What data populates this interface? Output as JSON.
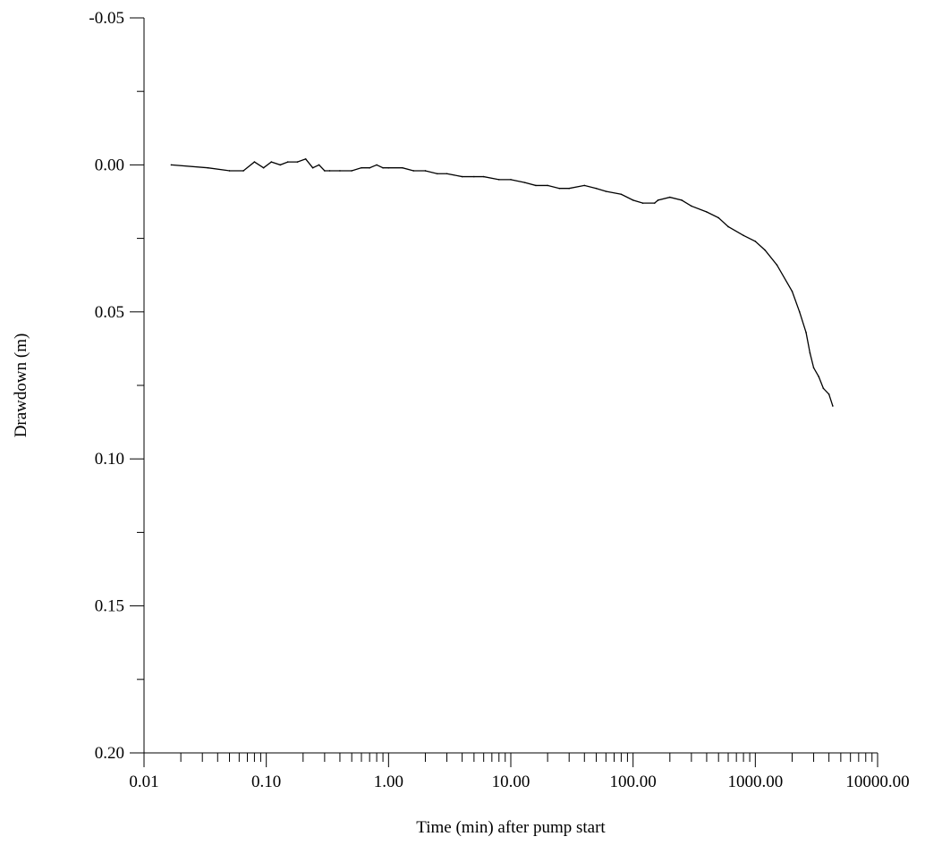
{
  "chart_data": {
    "type": "line",
    "title": "",
    "xlabel": "Time (min) after pump start",
    "ylabel": "Drawdown (m)",
    "x_scale": "log",
    "xlim": [
      0.01,
      10000
    ],
    "ylim": [
      -0.05,
      0.2
    ],
    "y_inverted": true,
    "grid": false,
    "legend": "none",
    "x_ticks": [
      0.01,
      0.1,
      1,
      10,
      100,
      1000,
      10000
    ],
    "x_tick_labels": [
      "0.01",
      "0.10",
      "1.00",
      "10.00",
      "100.00",
      "1000.00",
      "10000.00"
    ],
    "y_ticks": [
      -0.05,
      0.0,
      0.05,
      0.1,
      0.15,
      0.2
    ],
    "y_tick_labels": [
      "-0.05",
      "0.00",
      "0.05",
      "0.10",
      "0.15",
      "0.20"
    ],
    "line_color": "#000000",
    "series": [
      {
        "x": [
          0.0167,
          0.0333,
          0.05,
          0.065,
          0.08,
          0.095,
          0.11,
          0.13,
          0.15,
          0.18,
          0.21,
          0.24,
          0.27,
          0.3,
          0.33,
          0.4,
          0.5,
          0.6,
          0.7,
          0.8,
          0.9,
          1.0,
          1.3,
          1.6,
          2.0,
          2.5,
          3.0,
          4.0,
          5.0,
          6.0,
          8.0,
          10.0,
          13.0,
          16.0,
          20.0,
          25.0,
          30.0,
          40.0,
          50.0,
          60.0,
          80.0,
          100.0,
          120.0,
          150.0,
          160.0,
          200.0,
          250.0,
          300.0,
          400.0,
          500.0,
          600.0,
          800.0,
          1000.0,
          1200.0,
          1500.0,
          2000.0,
          2300.0,
          2600.0,
          2800.0,
          3000.0,
          3300.0,
          3600.0,
          4000.0,
          4300.0
        ],
        "y": [
          0.0,
          0.001,
          0.002,
          0.002,
          -0.001,
          0.001,
          -0.001,
          0.0,
          -0.001,
          -0.001,
          -0.002,
          0.001,
          0.0,
          0.002,
          0.002,
          0.002,
          0.002,
          0.001,
          0.001,
          0.0,
          0.001,
          0.001,
          0.001,
          0.002,
          0.002,
          0.003,
          0.003,
          0.004,
          0.004,
          0.004,
          0.005,
          0.005,
          0.006,
          0.007,
          0.007,
          0.008,
          0.008,
          0.007,
          0.008,
          0.009,
          0.01,
          0.012,
          0.013,
          0.013,
          0.012,
          0.011,
          0.012,
          0.014,
          0.016,
          0.018,
          0.021,
          0.024,
          0.026,
          0.029,
          0.034,
          0.043,
          0.05,
          0.057,
          0.064,
          0.069,
          0.072,
          0.076,
          0.078,
          0.082
        ]
      }
    ]
  }
}
